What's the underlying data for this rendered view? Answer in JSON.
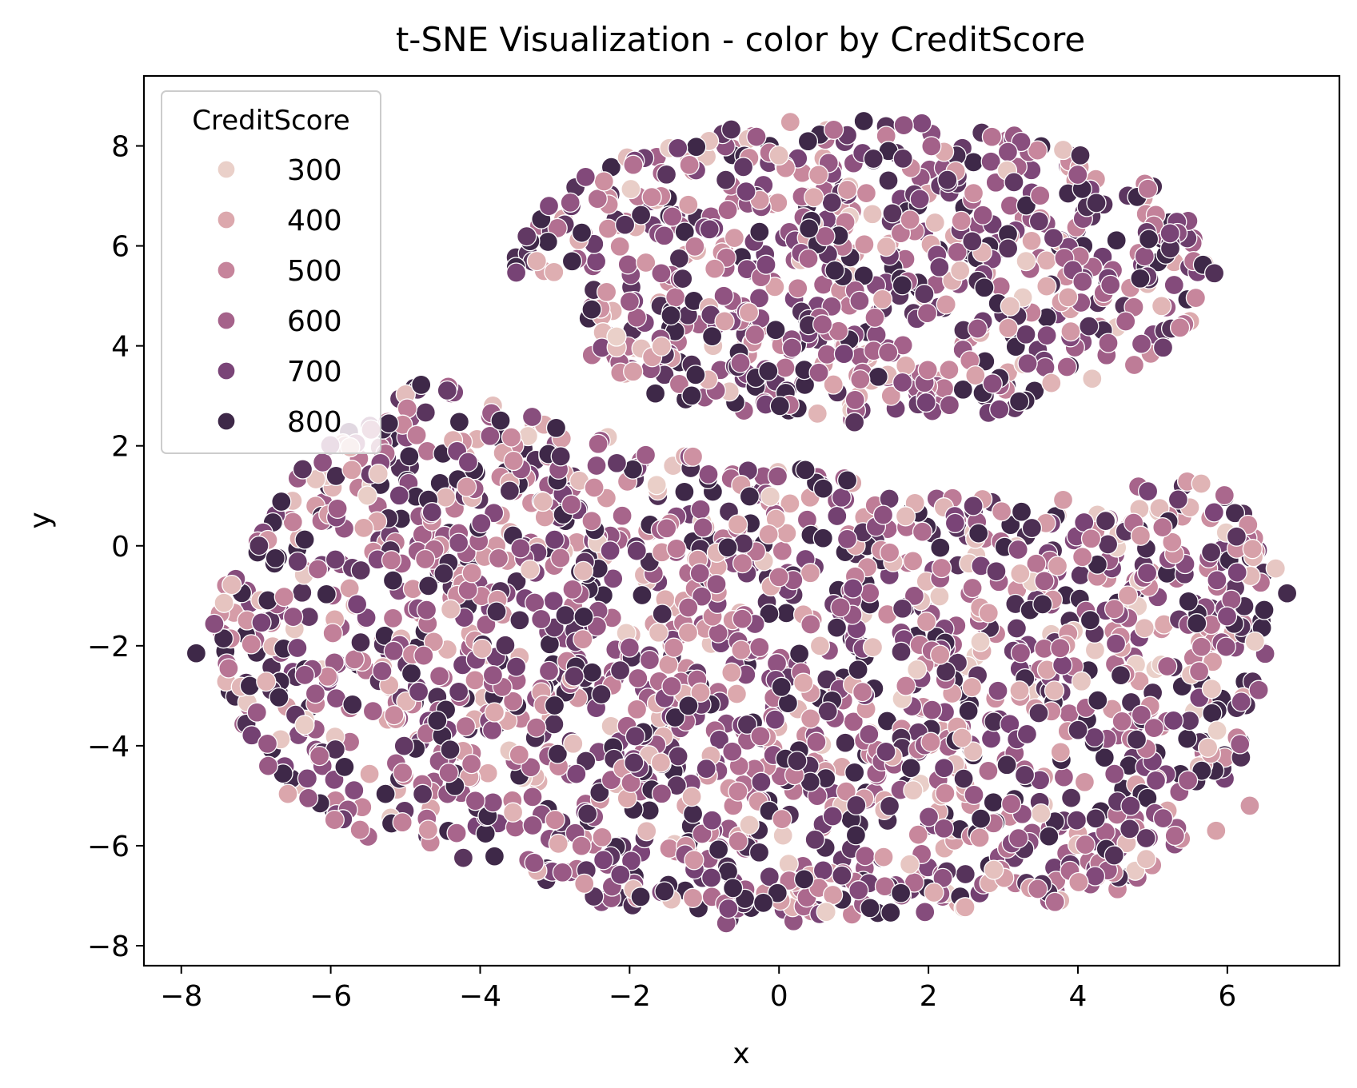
{
  "chart_data": {
    "type": "scatter",
    "title": "t-SNE Visualization - color by CreditScore",
    "xlabel": "x",
    "ylabel": "y",
    "xlim": [
      -8.5,
      7.5
    ],
    "ylim": [
      -8.4,
      9.4
    ],
    "xticks": [
      -8,
      -6,
      -4,
      -2,
      0,
      2,
      4,
      6
    ],
    "yticks": [
      -8,
      -6,
      -4,
      -2,
      0,
      2,
      4,
      6,
      8
    ],
    "grid": false,
    "legend": {
      "title": "CreditScore",
      "placement": "top-left",
      "entries": [
        {
          "label": "300",
          "value": 300,
          "color": "#ead0c9"
        },
        {
          "label": "400",
          "value": 400,
          "color": "#dca8ad"
        },
        {
          "label": "500",
          "value": 500,
          "color": "#c6849b"
        },
        {
          "label": "600",
          "value": 600,
          "color": "#a5628a"
        },
        {
          "label": "700",
          "value": 700,
          "color": "#7a4477"
        },
        {
          "label": "800",
          "value": 800,
          "color": "#3e2848"
        }
      ]
    },
    "color_scale": {
      "min": 300,
      "max": 850
    },
    "clusters": [
      {
        "name": "upper",
        "x_range": [
          -3.5,
          5.7
        ],
        "y_range": [
          2.4,
          8.6
        ]
      },
      {
        "name": "lower",
        "x_range": [
          -7.6,
          6.7
        ],
        "y_range": [
          -7.7,
          3.6
        ]
      }
    ],
    "outliers": [
      {
        "x": -7.8,
        "y": -2.15,
        "score": 820
      },
      {
        "x": 6.8,
        "y": -0.95,
        "score": 790
      },
      {
        "x": 6.3,
        "y": -5.2,
        "score": 450
      },
      {
        "x": 5.85,
        "y": -5.7,
        "score": 420
      }
    ]
  }
}
